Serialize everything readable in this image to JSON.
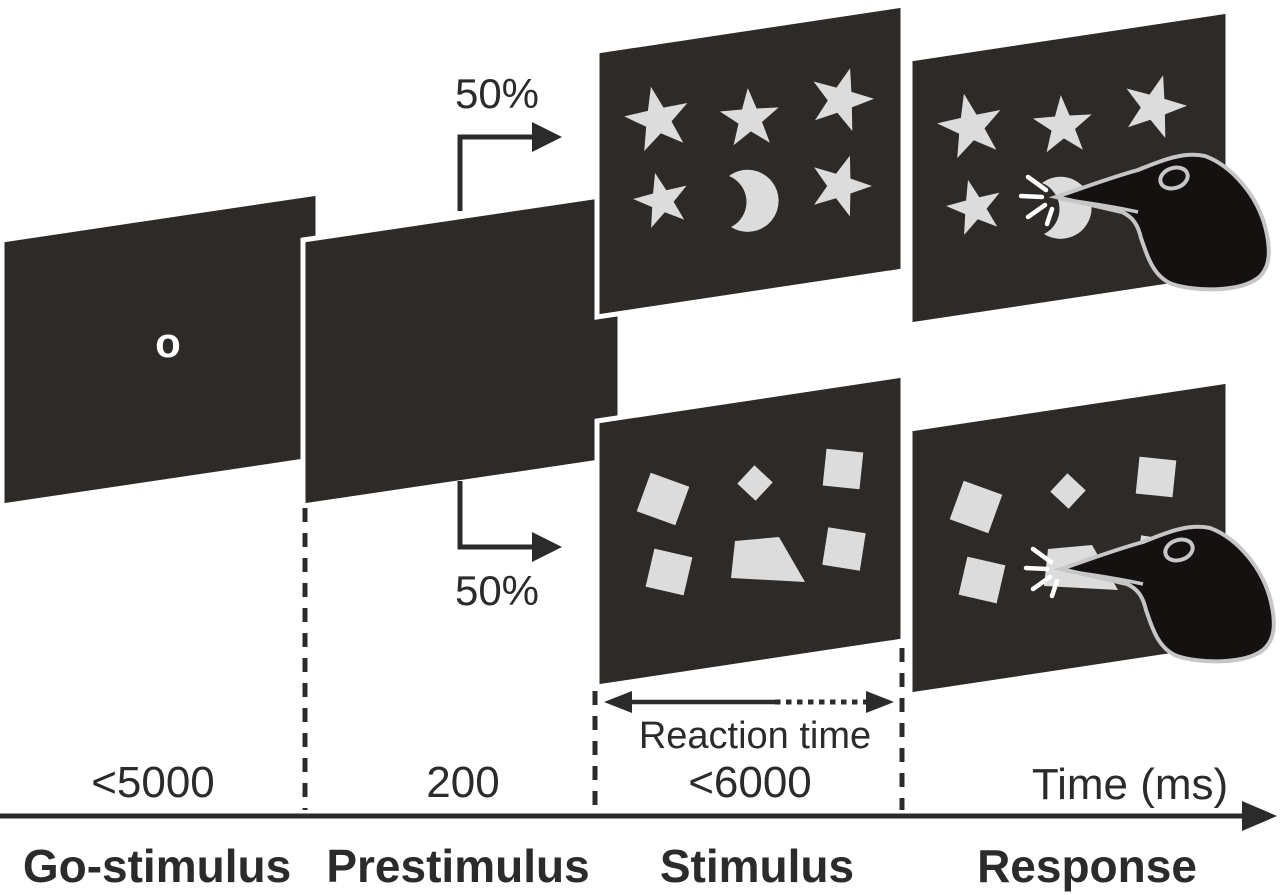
{
  "figure": {
    "go_symbol": "o",
    "branch_top_probability": "50%",
    "branch_bottom_probability": "50%",
    "reaction_time_label": "Reaction time",
    "axis_label": "Time (ms)",
    "phases": [
      {
        "label": "Go-stimulus",
        "duration_ms": "<5000"
      },
      {
        "label": "Prestimulus",
        "duration_ms": "200"
      },
      {
        "label": "Stimulus",
        "duration_ms": "<6000"
      },
      {
        "label": "Response"
      }
    ],
    "stimulus_top": {
      "type": "stars-and-moon",
      "star_count": 5,
      "moon_count": 1
    },
    "stimulus_bottom": {
      "type": "squares",
      "square_count": 5,
      "quad_count": 1
    }
  },
  "colors": {
    "background": "#ffffff",
    "panel": "#2e2a28",
    "shape": "#dcdcdc",
    "bird": "#141110",
    "bird_outline": "#c6c6c6",
    "ink": "#2b2b2b"
  }
}
